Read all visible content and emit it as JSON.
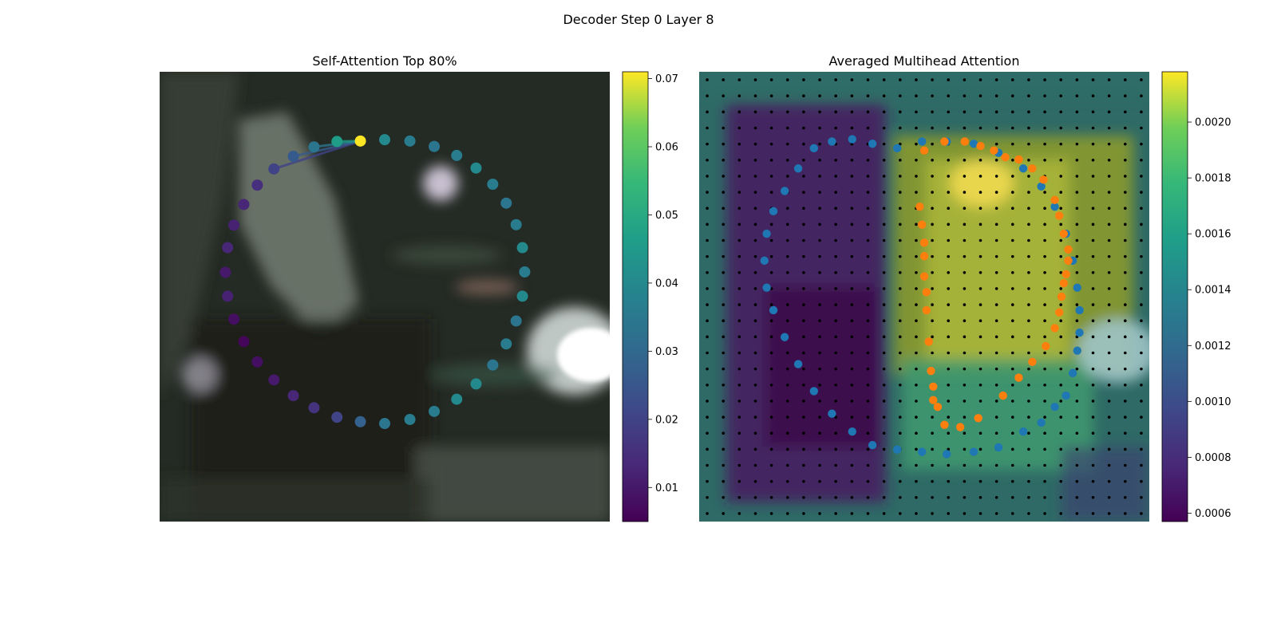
{
  "figure": {
    "title": "Decoder Step 0 Layer 8"
  },
  "chart_data": [
    {
      "type": "scatter",
      "title": "Self-Attention Top 80%",
      "background": "blurred grayscale-green photograph (dark scene, bright light at right edge)",
      "colormap": "viridis",
      "colorbar": {
        "range": [
          0.005,
          0.071
        ],
        "ticks": [
          "0.01",
          "0.02",
          "0.03",
          "0.04",
          "0.05",
          "0.06",
          "0.07"
        ],
        "tick_values": [
          0.01,
          0.02,
          0.03,
          0.04,
          0.05,
          0.06,
          0.07
        ]
      },
      "points": {
        "x": [
          0.446,
          0.5,
          0.556,
          0.61,
          0.66,
          0.703,
          0.74,
          0.77,
          0.792,
          0.806,
          0.811,
          0.806,
          0.792,
          0.77,
          0.74,
          0.703,
          0.66,
          0.61,
          0.556,
          0.5,
          0.446,
          0.394,
          0.343,
          0.297,
          0.254,
          0.217,
          0.187,
          0.165,
          0.151,
          0.146,
          0.151,
          0.165,
          0.187,
          0.217,
          0.254,
          0.297,
          0.343,
          0.394
        ],
        "y": [
          0.154,
          0.151,
          0.154,
          0.166,
          0.186,
          0.214,
          0.25,
          0.292,
          0.34,
          0.391,
          0.445,
          0.499,
          0.554,
          0.605,
          0.652,
          0.694,
          0.728,
          0.755,
          0.773,
          0.782,
          0.778,
          0.768,
          0.747,
          0.72,
          0.685,
          0.645,
          0.6,
          0.55,
          0.499,
          0.446,
          0.391,
          0.341,
          0.295,
          0.252,
          0.216,
          0.188,
          0.167,
          0.155
        ],
        "attention": [
          0.071,
          0.04,
          0.036,
          0.034,
          0.036,
          0.04,
          0.036,
          0.034,
          0.036,
          0.04,
          0.036,
          0.04,
          0.034,
          0.036,
          0.034,
          0.04,
          0.04,
          0.036,
          0.036,
          0.034,
          0.028,
          0.02,
          0.016,
          0.013,
          0.01,
          0.008,
          0.006,
          0.008,
          0.012,
          0.01,
          0.013,
          0.012,
          0.013,
          0.015,
          0.02,
          0.026,
          0.034,
          0.046
        ]
      },
      "query_index": 0,
      "lines_to": [
        34,
        35,
        36,
        37
      ]
    },
    {
      "type": "heatmap",
      "title": "Averaged Multihead Attention",
      "background": "photograph overlaid with averaged attention heatmap",
      "colormap": "viridis",
      "colorbar": {
        "range": [
          0.00057,
          0.00218
        ],
        "ticks": [
          "0.0006",
          "0.0008",
          "0.0010",
          "0.0012",
          "0.0014",
          "0.0016",
          "0.0018",
          "0.0020"
        ],
        "tick_values": [
          0.0006,
          0.0008,
          0.001,
          0.0012,
          0.0014,
          0.0016,
          0.0018,
          0.002
        ]
      },
      "grid_points": {
        "rows": 28,
        "cols": 28,
        "color": "#000000"
      },
      "series": [
        {
          "color": "#1f77b4",
          "x": [
            0.55,
            0.61,
            0.665,
            0.72,
            0.76,
            0.79,
            0.815,
            0.83,
            0.84,
            0.845,
            0.845,
            0.84,
            0.83,
            0.815,
            0.79,
            0.76,
            0.72,
            0.665,
            0.61,
            0.55,
            0.495,
            0.44,
            0.385,
            0.34,
            0.295,
            0.255,
            0.22,
            0.19,
            0.165,
            0.15,
            0.145,
            0.15,
            0.165,
            0.19,
            0.22,
            0.255,
            0.295,
            0.34,
            0.385,
            0.44,
            0.495
          ],
          "y": [
            0.155,
            0.16,
            0.18,
            0.215,
            0.255,
            0.3,
            0.36,
            0.42,
            0.48,
            0.53,
            0.58,
            0.62,
            0.67,
            0.72,
            0.745,
            0.78,
            0.8,
            0.835,
            0.845,
            0.85,
            0.845,
            0.84,
            0.83,
            0.8,
            0.76,
            0.71,
            0.65,
            0.59,
            0.53,
            0.48,
            0.42,
            0.36,
            0.31,
            0.265,
            0.215,
            0.17,
            0.155,
            0.15,
            0.16,
            0.17,
            0.155
          ]
        },
        {
          "color": "#ff7f0e",
          "x": [
            0.5,
            0.545,
            0.59,
            0.625,
            0.655,
            0.68,
            0.71,
            0.74,
            0.765,
            0.79,
            0.8,
            0.81,
            0.82,
            0.82,
            0.815,
            0.81,
            0.805,
            0.8,
            0.79,
            0.77,
            0.74,
            0.71,
            0.675,
            0.62,
            0.58,
            0.545,
            0.53,
            0.52,
            0.52,
            0.515,
            0.51,
            0.505,
            0.505,
            0.5,
            0.5,
            0.5,
            0.495,
            0.49
          ],
          "y": [
            0.175,
            0.155,
            0.155,
            0.165,
            0.175,
            0.19,
            0.195,
            0.215,
            0.24,
            0.285,
            0.32,
            0.36,
            0.395,
            0.42,
            0.45,
            0.47,
            0.5,
            0.535,
            0.57,
            0.61,
            0.645,
            0.68,
            0.72,
            0.77,
            0.79,
            0.785,
            0.745,
            0.73,
            0.7,
            0.665,
            0.6,
            0.53,
            0.49,
            0.455,
            0.41,
            0.38,
            0.34,
            0.3
          ]
        }
      ]
    }
  ]
}
